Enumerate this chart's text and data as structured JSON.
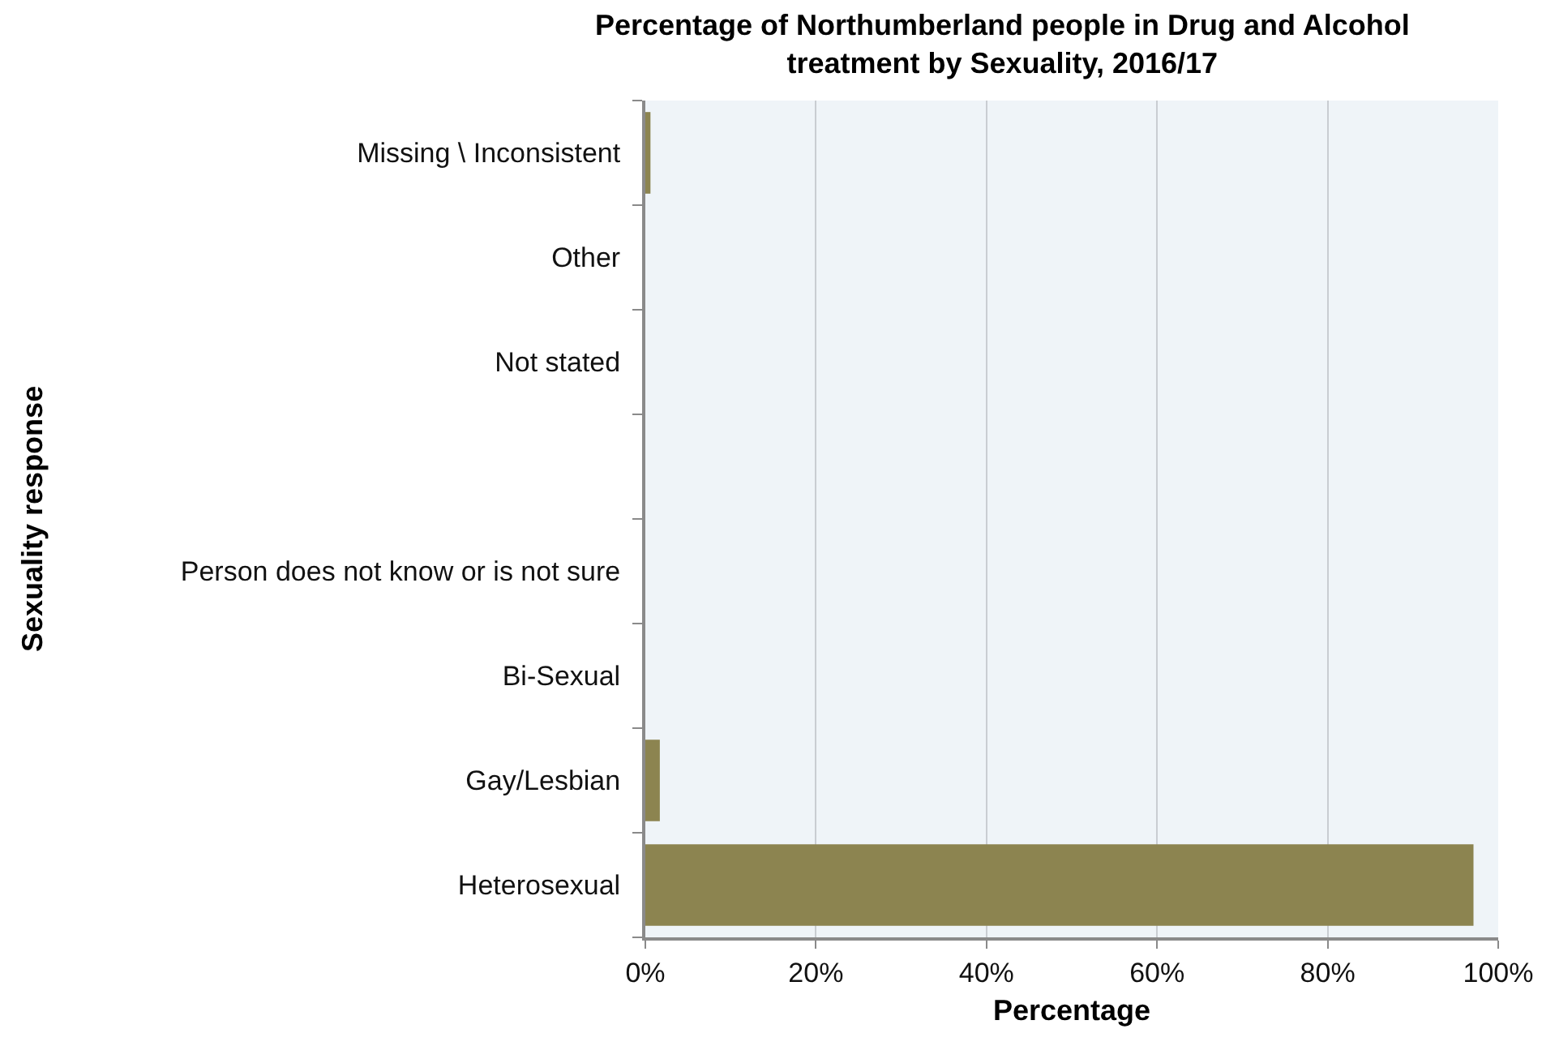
{
  "chart_data": {
    "type": "bar",
    "title": "Percentage of Northumberland people in Drug and Alcohol treatment by Sexuality, 2016/17",
    "xlabel": "Percentage",
    "ylabel": "Sexuality response",
    "orientation": "horizontal",
    "categories": [
      "Missing \\ Inconsistent",
      "Other",
      "Not stated",
      null,
      "Person does not know or is not sure",
      "Bi-Sexual",
      "Gay/Lesbian",
      "Heterosexual"
    ],
    "values": [
      0.6,
      0,
      0,
      null,
      0,
      0,
      1.7,
      97.1
    ],
    "color": "#8c8450",
    "xlim": [
      0,
      100
    ],
    "xticks": [
      {
        "value": 0,
        "label": "0%"
      },
      {
        "value": 20,
        "label": "20%"
      },
      {
        "value": 40,
        "label": "40%"
      },
      {
        "value": 60,
        "label": "60%"
      },
      {
        "value": 80,
        "label": "80%"
      },
      {
        "value": 100,
        "label": "100%"
      }
    ],
    "grid": "x"
  }
}
